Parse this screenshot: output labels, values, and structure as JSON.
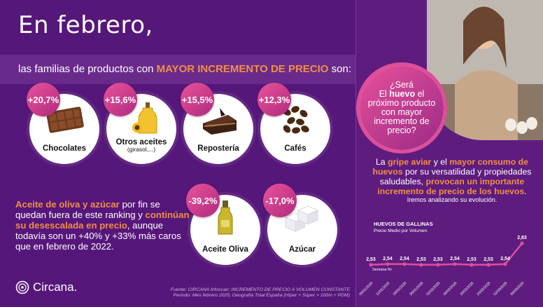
{
  "title": "En febrero,",
  "subtitle": {
    "before": "las familias de productos con ",
    "highlight": "MAYOR INCREMENTO DE PRECIO",
    "after": " son:"
  },
  "top_products": [
    {
      "badge": "+20,7%",
      "name": "Chocolates",
      "sub": ""
    },
    {
      "badge": "+15,6%",
      "name": "Otros aceites",
      "sub": "(girasol,...)"
    },
    {
      "badge": "+15,5%",
      "name": "Repostería",
      "sub": ""
    },
    {
      "badge": "+12,3%",
      "name": "Cafés",
      "sub": ""
    }
  ],
  "olive_text": {
    "p1": "Aceite de oliva y azúcar",
    "p2": " por fin se quedan fuera de este ranking y ",
    "p3": "continúan su desescalada en precio",
    "p4": ", aunque todavía son un +40% y +33% más caros que en febrero de 2022."
  },
  "bottom_products": [
    {
      "badge": "-39,2%",
      "name": "Aceite Oliva"
    },
    {
      "badge": "-17,0%",
      "name": "Azúcar"
    }
  ],
  "logo": "Circana.",
  "source": {
    "line1": "Fuente: CIRCANA Infoscan: INCREMENTO DE PRECIO A VOLUMEN CONSTANTE",
    "line2": "Periodo: Mes febrero 2025; Geografía Total España (Híper + Súper > 100m + PDM)"
  },
  "question": {
    "l1": "¿Será",
    "l2a": "El ",
    "l2b": "huevo",
    "l2c": " el",
    "l3": "próximo producto con mayor incremento de precio?"
  },
  "gripe": {
    "a": "La ",
    "b": "gripe aviar",
    "c": " y el ",
    "d": "mayor consumo de huevos",
    "e": " por su versatilidad y propiedades saludables,  ",
    "f": "provocan un importante incremento de precio de los huevos",
    "g": "."
  },
  "evolution": "Iremos analizando su evolución.",
  "chart_data": {
    "type": "line",
    "title": "HUEVOS DE GALLINAS",
    "ylabel": "Precio Medio por Volumen",
    "xlabel": "Semana fin",
    "x": [
      "05/01/2025",
      "12/01/2025",
      "19/01/2025",
      "26/01/2025",
      "02/02/2025",
      "09/02/2025",
      "16/02/2025",
      "23/02/2025",
      "02/03/2025",
      "09/03/2025"
    ],
    "values": [
      2.53,
      2.54,
      2.54,
      2.53,
      2.53,
      2.54,
      2.53,
      2.53,
      2.54,
      2.83
    ],
    "labels": [
      "2,53",
      "2,54",
      "2,54",
      "2,53",
      "2,53",
      "2,54",
      "2,53",
      "2,53",
      "2,54",
      "2,83"
    ],
    "color": "#e04e9a"
  }
}
